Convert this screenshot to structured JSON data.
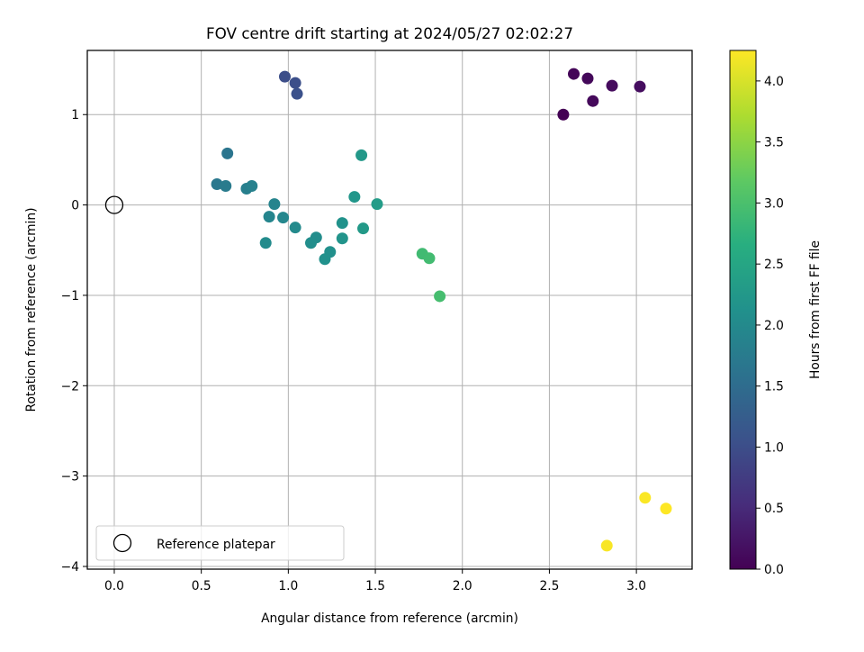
{
  "chart_data": {
    "type": "scatter",
    "title": "FOV centre drift starting at 2024/05/27 02:02:27",
    "xlabel": "Angular distance from reference (arcmin)",
    "ylabel": "Rotation from reference (arcmin)",
    "xlim": [
      -0.155,
      3.32
    ],
    "ylim": [
      -4.03,
      1.71
    ],
    "x_ticks": [
      0.0,
      0.5,
      1.0,
      1.5,
      2.0,
      2.5,
      3.0
    ],
    "x_tick_labels": [
      "0.0",
      "0.5",
      "1.0",
      "1.5",
      "2.0",
      "2.5",
      "3.0"
    ],
    "y_ticks": [
      1,
      0,
      -1,
      -2,
      -3,
      -4
    ],
    "y_tick_labels": [
      "1",
      "0",
      "−1",
      "−2",
      "−3",
      "−4"
    ],
    "grid": true,
    "colormap": "viridis",
    "colorbar": {
      "label": "Hours from first FF file",
      "range": [
        0.0,
        4.25
      ],
      "ticks": [
        0.0,
        0.5,
        1.0,
        1.5,
        2.0,
        2.5,
        3.0,
        3.5,
        4.0
      ],
      "tick_labels": [
        "0.0",
        "0.5",
        "1.0",
        "1.5",
        "2.0",
        "2.5",
        "3.0",
        "3.5",
        "4.0"
      ]
    },
    "legend": {
      "placement": "lower-left",
      "entries": [
        {
          "label": "Reference platepar",
          "marker": "open-circle"
        }
      ]
    },
    "reference_point": {
      "x": 0.0,
      "y": 0.0
    },
    "points": [
      {
        "x": 2.58,
        "y": 1.0,
        "c": 0.0
      },
      {
        "x": 2.64,
        "y": 1.45,
        "c": 0.05
      },
      {
        "x": 2.72,
        "y": 1.4,
        "c": 0.08
      },
      {
        "x": 2.75,
        "y": 1.15,
        "c": 0.1
      },
      {
        "x": 2.86,
        "y": 1.32,
        "c": 0.12
      },
      {
        "x": 3.02,
        "y": 1.31,
        "c": 0.15
      },
      {
        "x": 0.98,
        "y": 1.42,
        "c": 1.0
      },
      {
        "x": 1.04,
        "y": 1.35,
        "c": 1.02
      },
      {
        "x": 1.05,
        "y": 1.23,
        "c": 1.05
      },
      {
        "x": 0.65,
        "y": 0.57,
        "c": 1.65
      },
      {
        "x": 0.59,
        "y": 0.23,
        "c": 1.7
      },
      {
        "x": 0.64,
        "y": 0.21,
        "c": 1.75
      },
      {
        "x": 0.76,
        "y": 0.18,
        "c": 1.82
      },
      {
        "x": 0.79,
        "y": 0.21,
        "c": 1.85
      },
      {
        "x": 0.92,
        "y": 0.01,
        "c": 1.9
      },
      {
        "x": 0.89,
        "y": -0.13,
        "c": 1.92
      },
      {
        "x": 0.97,
        "y": -0.14,
        "c": 1.95
      },
      {
        "x": 1.04,
        "y": -0.25,
        "c": 2.0
      },
      {
        "x": 0.87,
        "y": -0.42,
        "c": 2.02
      },
      {
        "x": 1.16,
        "y": -0.36,
        "c": 2.05
      },
      {
        "x": 1.13,
        "y": -0.42,
        "c": 2.08
      },
      {
        "x": 1.24,
        "y": -0.52,
        "c": 2.1
      },
      {
        "x": 1.21,
        "y": -0.6,
        "c": 2.12
      },
      {
        "x": 1.31,
        "y": -0.2,
        "c": 2.15
      },
      {
        "x": 1.31,
        "y": -0.37,
        "c": 2.18
      },
      {
        "x": 1.38,
        "y": 0.09,
        "c": 2.22
      },
      {
        "x": 1.42,
        "y": 0.55,
        "c": 2.25
      },
      {
        "x": 1.43,
        "y": -0.26,
        "c": 2.28
      },
      {
        "x": 1.51,
        "y": 0.01,
        "c": 2.32
      },
      {
        "x": 1.77,
        "y": -0.54,
        "c": 2.9
      },
      {
        "x": 1.81,
        "y": -0.59,
        "c": 2.92
      },
      {
        "x": 1.87,
        "y": -1.01,
        "c": 2.95
      },
      {
        "x": 2.83,
        "y": -3.77,
        "c": 4.22
      },
      {
        "x": 3.05,
        "y": -3.24,
        "c": 4.23
      },
      {
        "x": 3.17,
        "y": -3.36,
        "c": 4.25
      }
    ]
  }
}
